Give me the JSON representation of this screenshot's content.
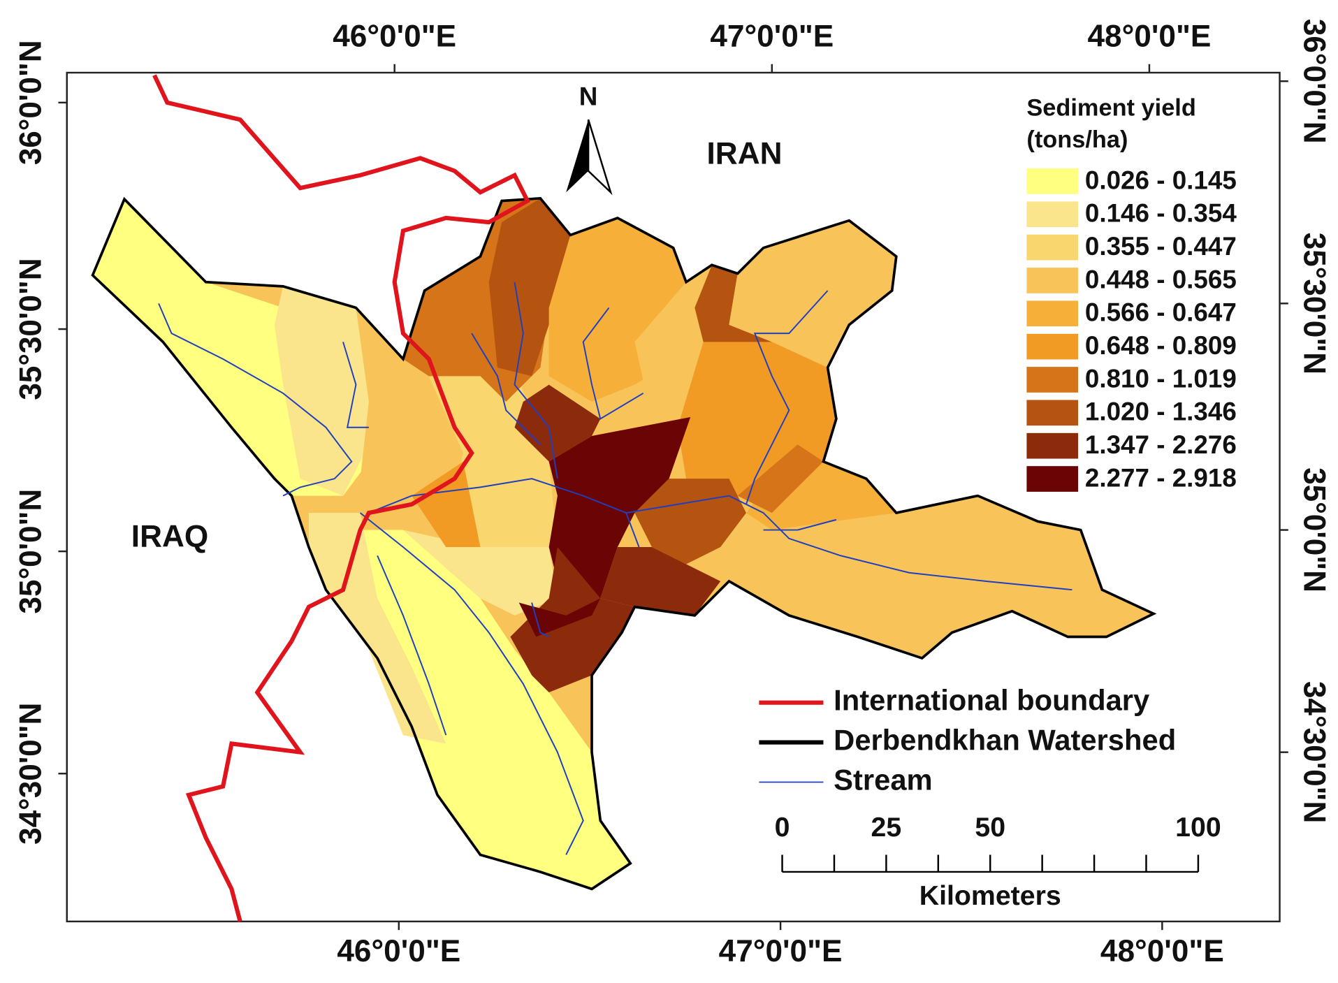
{
  "graticule": {
    "top": [
      "46°0'0\"E",
      "47°0'0\"E",
      "48°0'0\"E"
    ],
    "bottom": [
      "46°0'0\"E",
      "47°0'0\"E",
      "48°0'0\"E"
    ],
    "left": [
      "36°0'0\"N",
      "35°30'0\"N",
      "35°0'0\"N",
      "34°30'0\"N"
    ],
    "right": [
      "36°0'0\"N",
      "35°30'0\"N",
      "35°0'0\"N",
      "34°30'0\"N"
    ]
  },
  "labels": {
    "north": "N",
    "iran": "IRAN",
    "iraq": "IRAQ"
  },
  "legend": {
    "title": [
      "Sediment yield",
      "(tons/ha)"
    ],
    "classes": [
      {
        "label": "0.026 - 0.145",
        "color": "#ffff80"
      },
      {
        "label": "0.146 - 0.354",
        "color": "#fbe58c"
      },
      {
        "label": "0.355 - 0.447",
        "color": "#f9d66e"
      },
      {
        "label": "0.448 - 0.565",
        "color": "#f8c45a"
      },
      {
        "label": "0.566 - 0.647",
        "color": "#f6b039"
      },
      {
        "label": "0.648 - 0.809",
        "color": "#f29b24"
      },
      {
        "label": "0.810 - 1.019",
        "color": "#d57418"
      },
      {
        "label": "1.020 - 1.346",
        "color": "#b55311"
      },
      {
        "label": "1.347 - 2.276",
        "color": "#8c2a0c"
      },
      {
        "label": "2.277 - 2.918",
        "color": "#6b0404"
      }
    ]
  },
  "line_legend": [
    {
      "label": "International boundary",
      "color": "#e0141c"
    },
    {
      "label": "Derbendkhan Watershed",
      "color": "#000000"
    },
    {
      "label": "Stream",
      "color": "#1f3fbf"
    }
  ],
  "scale_bar": {
    "ticks": [
      0,
      25,
      50,
      100
    ],
    "unit": "Kilometers"
  }
}
